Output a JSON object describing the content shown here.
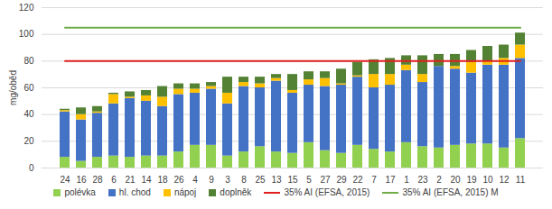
{
  "chart_data": {
    "type": "bar",
    "stacked": true,
    "grid": true,
    "legend": "bottom",
    "y_label": "mg/oběd",
    "categories": [
      "24",
      "16",
      "28",
      "6",
      "21",
      "14",
      "18",
      "26",
      "4",
      "9",
      "3",
      "8",
      "25",
      "13",
      "15",
      "5",
      "27",
      "29",
      "22",
      "7",
      "17",
      "1",
      "23",
      "2",
      "20",
      "19",
      "10",
      "12",
      "11"
    ],
    "ylim": [
      0,
      120
    ],
    "yticks": [
      0,
      20,
      40,
      60,
      80,
      100,
      120
    ],
    "series": [
      {
        "name": "polévka",
        "color": "#92d050",
        "values": [
          8,
          5,
          8,
          9,
          8,
          9,
          9,
          12,
          17,
          17,
          9,
          12,
          16,
          12,
          11,
          19,
          13,
          11,
          17,
          14,
          12,
          19,
          16,
          15,
          17,
          18,
          18,
          15,
          22
        ]
      },
      {
        "name": "hl. chod",
        "color": "#4472c4",
        "values": [
          34,
          31,
          33,
          39,
          44,
          41,
          37,
          43,
          39,
          42,
          39,
          49,
          44,
          53,
          45,
          43,
          48,
          51,
          51,
          46,
          50,
          54,
          48,
          61,
          57,
          53,
          59,
          62,
          60
        ]
      },
      {
        "name": "nápoj",
        "color": "#ffc000",
        "values": [
          1,
          4,
          1,
          7,
          1,
          4,
          7,
          4,
          3,
          2,
          8,
          3,
          3,
          2,
          2,
          4,
          6,
          1,
          1,
          10,
          8,
          4,
          6,
          0,
          2,
          8,
          3,
          5,
          10
        ]
      },
      {
        "name": "doplněk",
        "color": "#548235",
        "values": [
          1,
          5,
          4,
          1,
          4,
          4,
          8,
          4,
          4,
          3,
          12,
          4,
          5,
          3,
          12,
          6,
          5,
          11,
          10,
          11,
          12,
          7,
          14,
          9,
          9,
          9,
          11,
          10,
          9
        ]
      },
      {
        "name": "35% AI (EFSA, 2015)",
        "type": "line",
        "color": "#e02020",
        "values": [
          80,
          80,
          80,
          80,
          80,
          80,
          80,
          80,
          80,
          80,
          80,
          80,
          80,
          80,
          80,
          80,
          80,
          80,
          80,
          80,
          80,
          80,
          80,
          80,
          80,
          80,
          80,
          80,
          80
        ]
      },
      {
        "name": "35% AI (EFSA, 2015) M",
        "type": "line",
        "color": "#70ad47",
        "values": [
          105,
          105,
          105,
          105,
          105,
          105,
          105,
          105,
          105,
          105,
          105,
          105,
          105,
          105,
          105,
          105,
          105,
          105,
          105,
          105,
          105,
          105,
          105,
          105,
          105,
          105,
          105,
          105,
          105
        ]
      }
    ]
  }
}
